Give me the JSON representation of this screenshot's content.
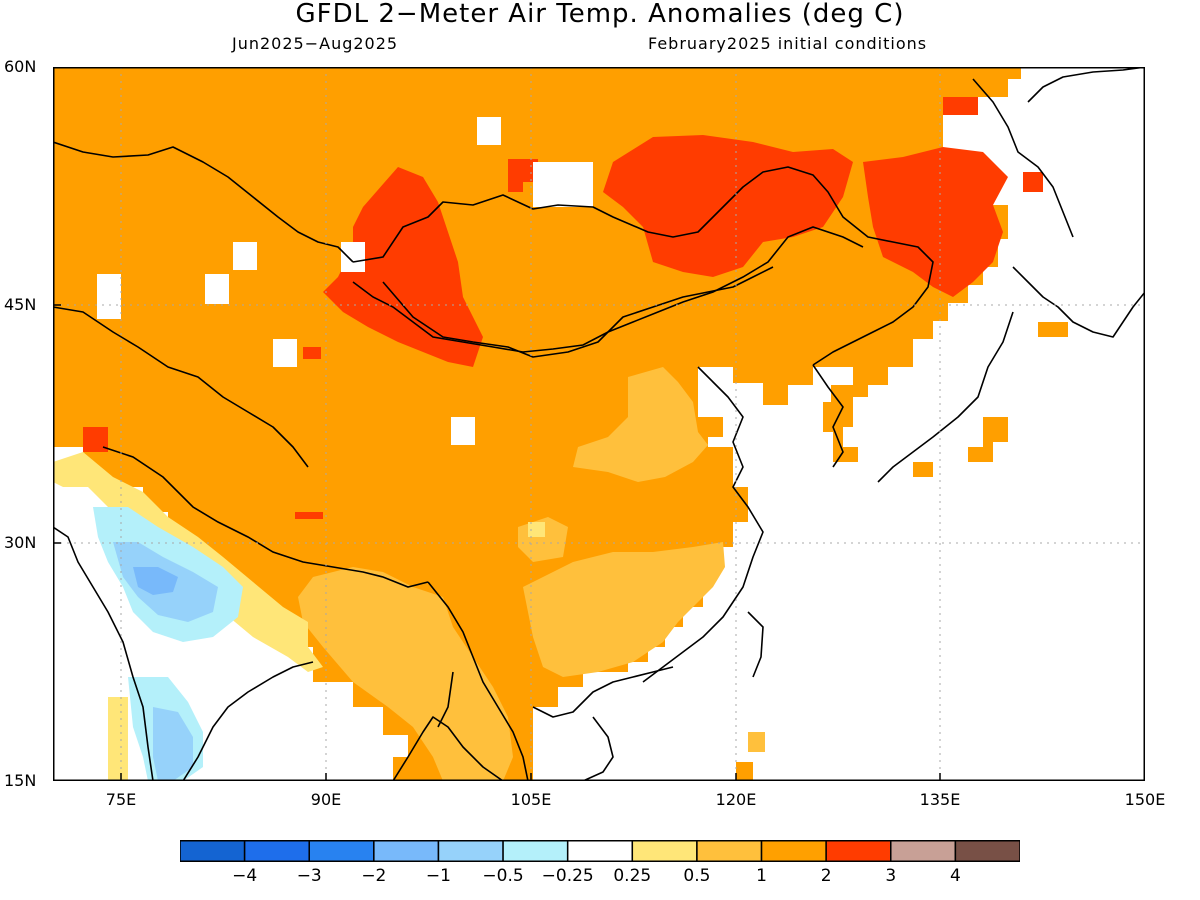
{
  "header": {
    "title": "GFDL 2−Meter Air Temp. Anomalies (deg C)",
    "period": "Jun2025−Aug2025",
    "initial_conditions": "February2025 initial conditions"
  },
  "map": {
    "projection": "lat-lon",
    "lon_range": [
      70,
      150
    ],
    "lat_range": [
      15,
      60
    ],
    "lat_ticks": [
      {
        "value": 60,
        "label": "60N"
      },
      {
        "value": 45,
        "label": "45N"
      },
      {
        "value": 30,
        "label": "30N"
      },
      {
        "value": 15,
        "label": "15N"
      }
    ],
    "lon_ticks": [
      {
        "value": 75,
        "label": "75E"
      },
      {
        "value": 90,
        "label": "90E"
      },
      {
        "value": 105,
        "label": "105E"
      },
      {
        "value": 120,
        "label": "120E"
      },
      {
        "value": 135,
        "label": "135E"
      },
      {
        "value": 150,
        "label": "150E"
      }
    ],
    "ocean_color": "#ffffff",
    "land_base_color": "#ff9f00"
  },
  "colorbar": {
    "colors": [
      "#1464d2",
      "#1e6eeb",
      "#2882f0",
      "#78b9fa",
      "#96d2fa",
      "#b4f0fa",
      "#ffffff",
      "#ffe678",
      "#ffc03c",
      "#ffa000",
      "#ff3c00",
      "#c8a096",
      "#785046"
    ],
    "labels": [
      "−4",
      "−3",
      "−2",
      "−1",
      "−0.5",
      "−0.25",
      "0.25",
      "0.5",
      "1",
      "2",
      "3",
      "4"
    ]
  }
}
